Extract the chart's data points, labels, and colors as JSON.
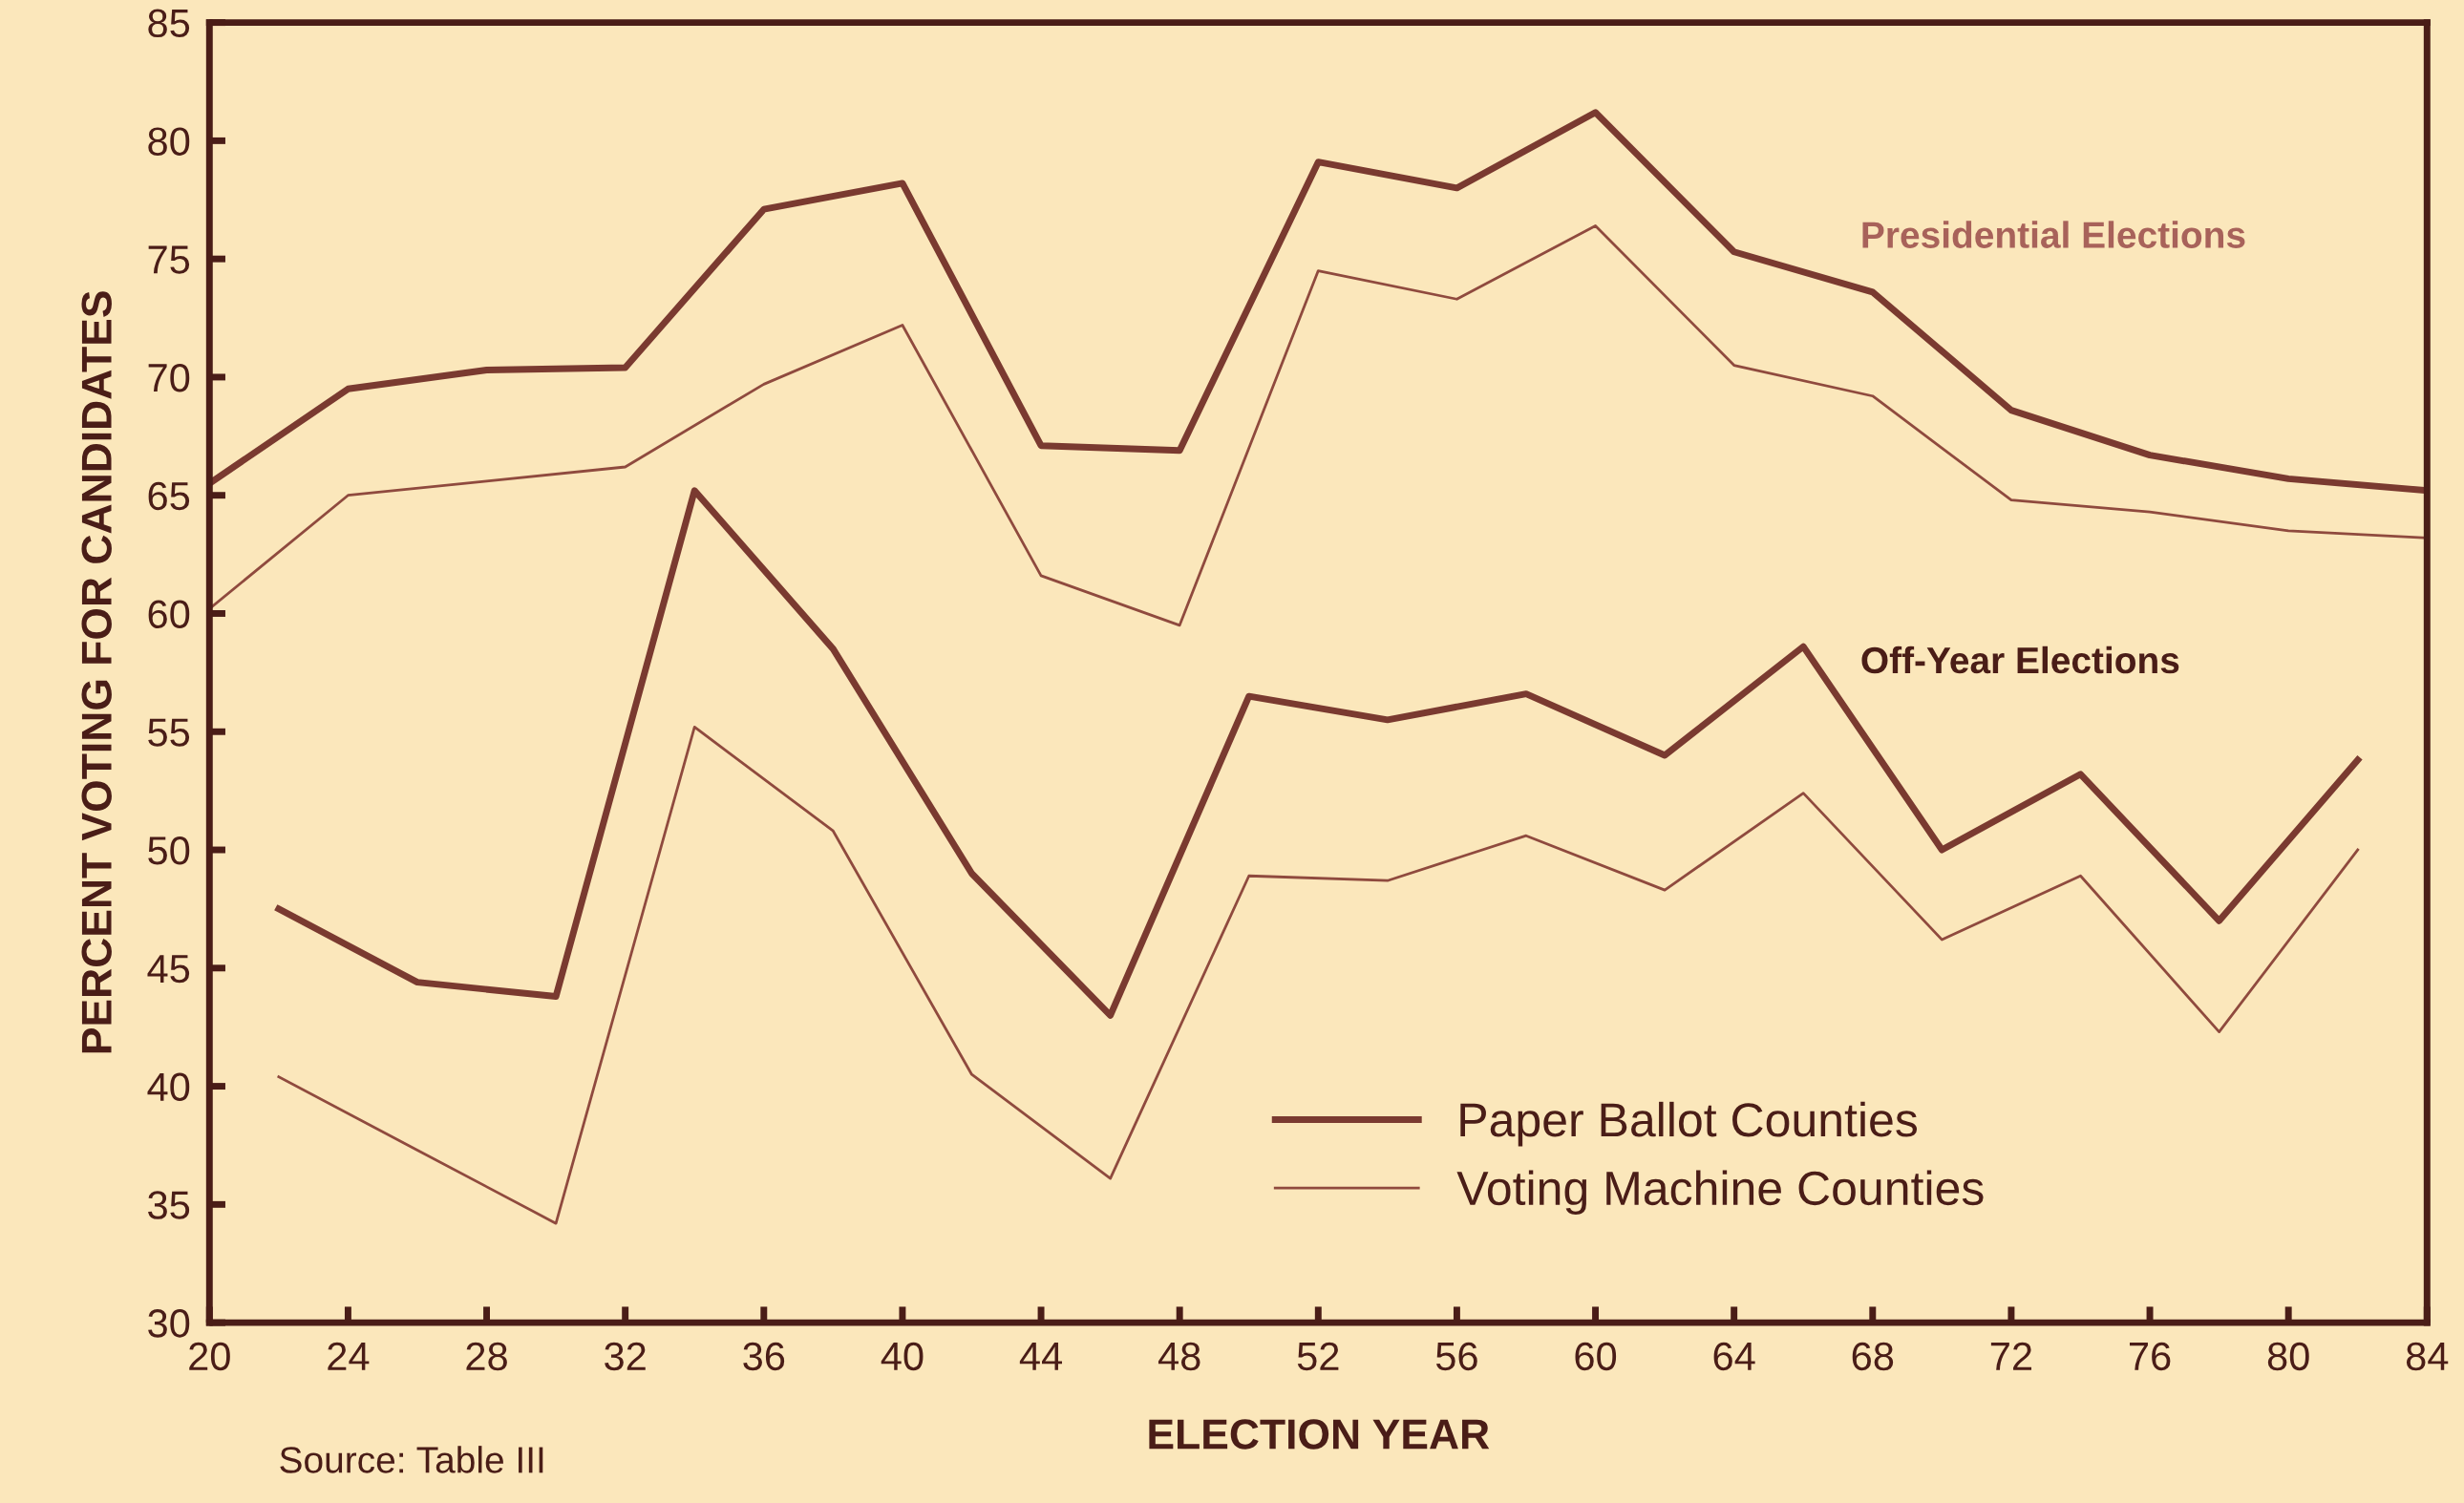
{
  "chart_data": {
    "type": "line",
    "xlabel": "ELECTION YEAR",
    "ylabel": "PERCENT VOTING FOR CANDIDATES",
    "series": [
      {
        "name": "Paper Ballot Counties",
        "color": "#7a3a30",
        "x": [
          20,
          24,
          28,
          32,
          36,
          40,
          44,
          48,
          52,
          56,
          60,
          64,
          68,
          72,
          76,
          80,
          84
        ],
        "values": [
          65.5,
          69.5,
          70.3,
          70.4,
          77.1,
          78.2,
          67.1,
          66.9,
          79.1,
          78.0,
          81.2,
          75.3,
          73.6,
          68.6,
          66.7,
          65.7,
          65.2
        ]
      },
      {
        "name": "Voting Machine Counties",
        "color": "#8f4a3e",
        "x": [
          20,
          24,
          28,
          32,
          36,
          40,
          44,
          48,
          52,
          56,
          60,
          64,
          68,
          72,
          76,
          80,
          84
        ],
        "values": [
          60.2,
          65.0,
          65.6,
          66.2,
          69.7,
          72.2,
          61.6,
          59.5,
          74.5,
          73.3,
          76.4,
          70.5,
          69.2,
          64.8,
          64.3,
          63.5,
          63.2
        ]
      },
      {
        "color": "#7a3a30",
        "x": [
          22,
          26,
          30,
          34,
          38,
          42,
          46,
          50,
          54,
          58,
          62,
          66,
          70,
          74,
          78,
          82
        ],
        "values": [
          47.5,
          44.4,
          43.8,
          65.2,
          58.5,
          49.0,
          43.0,
          56.5,
          55.5,
          56.6,
          54.0,
          58.6,
          50.0,
          53.2,
          47.0,
          53.8
        ]
      },
      {
        "color": "#8f4a3e",
        "x": [
          22,
          26,
          30,
          34,
          38,
          42,
          46,
          50,
          54,
          58,
          62,
          66,
          70,
          74,
          78,
          82
        ],
        "values": [
          40.4,
          37.3,
          34.2,
          55.2,
          50.8,
          40.5,
          36.1,
          48.9,
          48.7,
          50.6,
          48.3,
          52.4,
          46.2,
          48.9,
          42.3,
          50.0
        ]
      }
    ],
    "xlim": [
      20,
      84
    ],
    "xticks": [
      20,
      24,
      28,
      32,
      36,
      40,
      44,
      48,
      52,
      56,
      60,
      64,
      68,
      72,
      76,
      80,
      84
    ],
    "ylim": [
      30,
      85
    ],
    "yticks": [
      30,
      35,
      40,
      45,
      50,
      55,
      60,
      65,
      70,
      75,
      80,
      85
    ],
    "annotations": [
      "Presidential Elections",
      "Off-Year Elections",
      "Source: Table III"
    ],
    "grid": false,
    "legend": "bottom right",
    "line_style": "solid",
    "marker": "none"
  }
}
